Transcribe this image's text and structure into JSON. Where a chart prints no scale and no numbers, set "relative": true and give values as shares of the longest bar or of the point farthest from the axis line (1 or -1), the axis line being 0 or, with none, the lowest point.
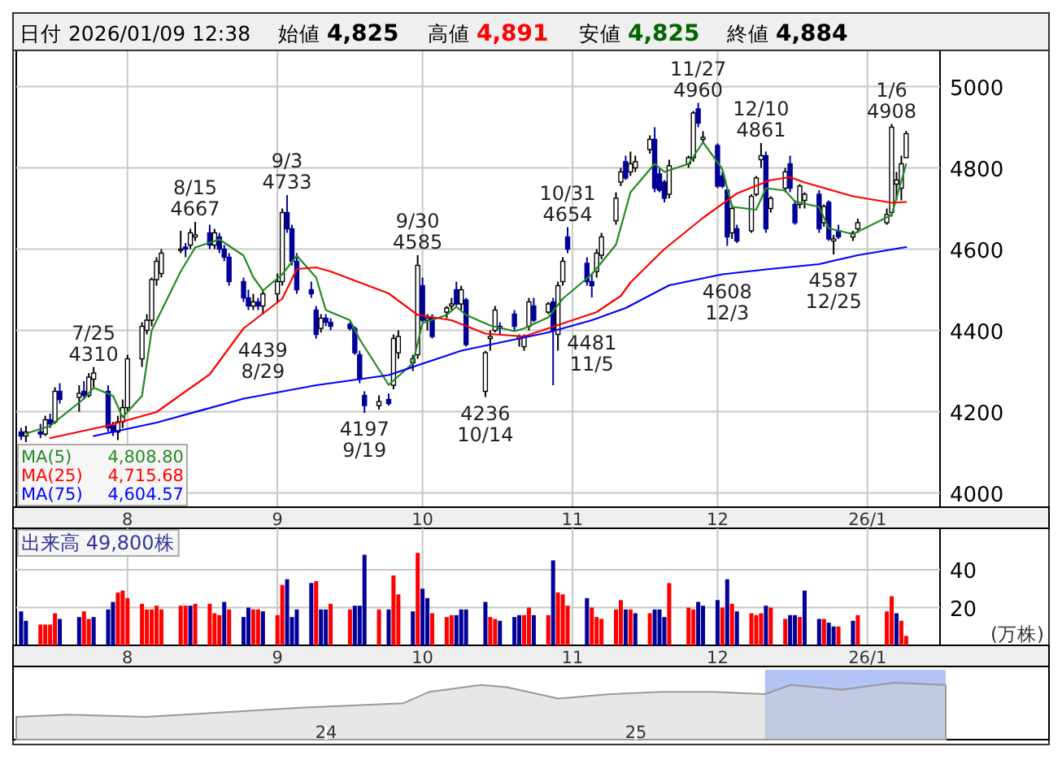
{
  "chart_data": [
    {
      "type": "candlestick",
      "x": [
        "2025-07-10",
        "2025-07-11",
        "2025-07-14",
        "2025-07-15",
        "2025-07-16",
        "2025-07-17",
        "2025-07-18",
        "2025-07-22",
        "2025-07-23",
        "2025-07-24",
        "2025-07-25",
        "2025-07-28",
        "2025-07-29",
        "2025-07-30",
        "2025-07-31",
        "2025-08-01",
        "2025-08-04",
        "2025-08-05",
        "2025-08-06",
        "2025-08-07",
        "2025-08-08",
        "2025-08-12",
        "2025-08-13",
        "2025-08-14",
        "2025-08-15",
        "2025-08-18",
        "2025-08-19",
        "2025-08-20",
        "2025-08-21",
        "2025-08-22",
        "2025-08-25",
        "2025-08-26",
        "2025-08-27",
        "2025-08-28",
        "2025-08-29",
        "2025-09-01",
        "2025-09-02",
        "2025-09-03",
        "2025-09-04",
        "2025-09-05",
        "2025-09-08",
        "2025-09-09",
        "2025-09-10",
        "2025-09-11",
        "2025-09-12",
        "2025-09-16",
        "2025-09-17",
        "2025-09-18",
        "2025-09-19",
        "2025-09-22",
        "2025-09-24",
        "2025-09-25",
        "2025-09-26",
        "2025-09-29",
        "2025-09-30",
        "2025-10-01",
        "2025-10-02",
        "2025-10-03",
        "2025-10-06",
        "2025-10-07",
        "2025-10-08",
        "2025-10-09",
        "2025-10-10",
        "2025-10-14",
        "2025-10-15",
        "2025-10-16",
        "2025-10-17",
        "2025-10-20",
        "2025-10-21",
        "2025-10-22",
        "2025-10-23",
        "2025-10-24",
        "2025-10-27",
        "2025-10-28",
        "2025-10-29",
        "2025-10-30",
        "2025-10-31",
        "2025-11-04",
        "2025-11-05",
        "2025-11-06",
        "2025-11-07",
        "2025-11-10",
        "2025-11-11",
        "2025-11-12",
        "2025-11-13",
        "2025-11-14",
        "2025-11-17",
        "2025-11-18",
        "2025-11-19",
        "2025-11-20",
        "2025-11-21",
        "2025-11-25",
        "2025-11-26",
        "2025-11-27",
        "2025-11-28",
        "2025-12-01",
        "2025-12-02",
        "2025-12-03",
        "2025-12-04",
        "2025-12-05",
        "2025-12-08",
        "2025-12-09",
        "2025-12-10",
        "2025-12-11",
        "2025-12-12",
        "2025-12-15",
        "2025-12-16",
        "2025-12-17",
        "2025-12-18",
        "2025-12-19",
        "2025-12-22",
        "2025-12-23",
        "2025-12-24",
        "2025-12-25",
        "2025-12-26",
        "2025-12-29",
        "2025-12-30",
        "2026-01-05",
        "2026-01-06",
        "2026-01-07",
        "2026-01-08",
        "2026-01-09"
      ],
      "ohlc": [
        [
          4150,
          4160,
          4130,
          4140
        ],
        [
          4140,
          4165,
          4125,
          4150
        ],
        [
          4150,
          4170,
          4135,
          4145
        ],
        [
          4145,
          4190,
          4140,
          4180
        ],
        [
          4180,
          4195,
          4160,
          4170
        ],
        [
          4175,
          4260,
          4170,
          4250
        ],
        [
          4250,
          4270,
          4220,
          4230
        ],
        [
          4235,
          4265,
          4200,
          4245
        ],
        [
          4250,
          4275,
          4230,
          4240
        ],
        [
          4240,
          4295,
          4235,
          4285
        ],
        [
          4280,
          4310,
          4260,
          4295
        ],
        [
          4250,
          4265,
          4150,
          4160
        ],
        [
          4165,
          4175,
          4140,
          4150
        ],
        [
          4150,
          4190,
          4130,
          4175
        ],
        [
          4175,
          4230,
          4160,
          4210
        ],
        [
          4210,
          4340,
          4200,
          4330
        ],
        [
          4330,
          4420,
          4310,
          4410
        ],
        [
          4400,
          4440,
          4390,
          4425
        ],
        [
          4425,
          4530,
          4410,
          4525
        ],
        [
          4525,
          4580,
          4510,
          4570
        ],
        [
          4540,
          4600,
          4530,
          4590
        ],
        [
          4600,
          4645,
          4590,
          4600
        ],
        [
          4605,
          4615,
          4580,
          4600
        ],
        [
          4610,
          4650,
          4600,
          4640
        ],
        [
          4630,
          4667,
          4620,
          4635
        ],
        [
          4640,
          4660,
          4600,
          4610
        ],
        [
          4610,
          4650,
          4600,
          4640
        ],
        [
          4630,
          4640,
          4590,
          4600
        ],
        [
          4600,
          4610,
          4570,
          4580
        ],
        [
          4580,
          4590,
          4510,
          4520
        ],
        [
          4520,
          4530,
          4470,
          4480
        ],
        [
          4480,
          4500,
          4450,
          4460
        ],
        [
          4460,
          4490,
          4450,
          4470
        ],
        [
          4470,
          4480,
          4450,
          4460
        ],
        [
          4460,
          4500,
          4439,
          4490
        ],
        [
          4490,
          4540,
          4470,
          4520
        ],
        [
          4520,
          4700,
          4510,
          4690
        ],
        [
          4690,
          4733,
          4640,
          4650
        ],
        [
          4650,
          4660,
          4560,
          4570
        ],
        [
          4570,
          4590,
          4490,
          4500
        ],
        [
          4500,
          4520,
          4480,
          4490
        ],
        [
          4450,
          4460,
          4380,
          4390
        ],
        [
          4405,
          4440,
          4395,
          4430
        ],
        [
          4430,
          4440,
          4410,
          4420
        ],
        [
          4420,
          4430,
          4400,
          4410
        ],
        [
          4415,
          4420,
          4400,
          4405
        ],
        [
          4405,
          4410,
          4340,
          4345
        ],
        [
          4340,
          4350,
          4270,
          4280
        ],
        [
          4240,
          4250,
          4197,
          4215
        ],
        [
          4215,
          4240,
          4205,
          4225
        ],
        [
          4230,
          4245,
          4215,
          4220
        ],
        [
          4265,
          4390,
          4255,
          4380
        ],
        [
          4345,
          4400,
          4330,
          4385
        ],
        [
          4320,
          4340,
          4300,
          4330
        ],
        [
          4340,
          4585,
          4330,
          4560
        ],
        [
          4510,
          4530,
          4420,
          4425
        ],
        [
          4425,
          4440,
          4400,
          4430
        ],
        [
          4430,
          4440,
          4380,
          4385
        ],
        [
          4445,
          4460,
          4430,
          4455
        ],
        [
          4460,
          4480,
          4450,
          4465
        ],
        [
          4500,
          4520,
          4460,
          4465
        ],
        [
          4465,
          4510,
          4450,
          4500
        ],
        [
          4475,
          4480,
          4360,
          4365
        ],
        [
          4250,
          4350,
          4236,
          4345
        ],
        [
          4380,
          4400,
          4350,
          4385
        ],
        [
          4400,
          4460,
          4395,
          4450
        ],
        [
          4410,
          4420,
          4390,
          4405
        ],
        [
          4440,
          4450,
          4400,
          4410
        ],
        [
          4380,
          4390,
          4360,
          4385
        ],
        [
          4360,
          4390,
          4350,
          4385
        ],
        [
          4410,
          4480,
          4400,
          4470
        ],
        [
          4460,
          4480,
          4420,
          4425
        ],
        [
          4445,
          4470,
          4440,
          4465
        ],
        [
          4470,
          4480,
          4265,
          4400
        ],
        [
          4390,
          4520,
          4350,
          4510
        ],
        [
          4520,
          4580,
          4510,
          4570
        ],
        [
          4630,
          4654,
          4590,
          4600
        ],
        [
          4565,
          4580,
          4510,
          4520
        ],
        [
          4520,
          4540,
          4481,
          4510
        ],
        [
          4545,
          4600,
          4530,
          4590
        ],
        [
          4585,
          4640,
          4575,
          4630
        ],
        [
          4670,
          4740,
          4660,
          4725
        ],
        [
          4765,
          4800,
          4755,
          4790
        ],
        [
          4815,
          4830,
          4770,
          4775
        ],
        [
          4790,
          4840,
          4780,
          4810
        ],
        [
          4800,
          4830,
          4790,
          4815
        ],
        [
          4845,
          4880,
          4835,
          4870
        ],
        [
          4870,
          4900,
          4740,
          4750
        ],
        [
          4785,
          4800,
          4740,
          4745
        ],
        [
          4765,
          4770,
          4715,
          4725
        ],
        [
          4735,
          4820,
          4725,
          4805
        ],
        [
          4810,
          4830,
          4800,
          4825
        ],
        [
          4825,
          4940,
          4815,
          4935
        ],
        [
          4945,
          4960,
          4900,
          4910
        ],
        [
          4870,
          4890,
          4860,
          4875
        ],
        [
          4855,
          4860,
          4750,
          4755
        ],
        [
          4780,
          4790,
          4750,
          4755
        ],
        [
          4745,
          4750,
          4608,
          4630
        ],
        [
          4640,
          4710,
          4625,
          4700
        ],
        [
          4650,
          4660,
          4615,
          4620
        ],
        [
          4645,
          4735,
          4640,
          4730
        ],
        [
          4735,
          4780,
          4730,
          4775
        ],
        [
          4820,
          4861,
          4800,
          4830
        ],
        [
          4830,
          4840,
          4640,
          4650
        ],
        [
          4700,
          4730,
          4690,
          4725
        ],
        [
          4750,
          4800,
          4740,
          4790
        ],
        [
          4810,
          4830,
          4740,
          4750
        ],
        [
          4710,
          4720,
          4660,
          4665
        ],
        [
          4710,
          4760,
          4700,
          4755
        ],
        [
          4720,
          4740,
          4700,
          4735
        ],
        [
          4735,
          4745,
          4640,
          4650
        ],
        [
          4665,
          4710,
          4655,
          4705
        ],
        [
          4715,
          4720,
          4620,
          4625
        ],
        [
          4620,
          4635,
          4587,
          4625
        ],
        [
          4645,
          4660,
          4625,
          4630
        ],
        [
          4630,
          4645,
          4620,
          4640
        ],
        [
          4650,
          4675,
          4640,
          4665
        ],
        [
          4665,
          4700,
          4660,
          4685
        ],
        [
          4690,
          4908,
          4680,
          4900
        ],
        [
          4760,
          4790,
          4720,
          4770
        ],
        [
          4750,
          4830,
          4720,
          4810
        ],
        [
          4825,
          4891,
          4825,
          4884
        ]
      ],
      "colors": [
        "#000099",
        "#ffffff",
        "#000099",
        "#ffffff",
        "#000099",
        "#ffffff",
        "#000099",
        "#ffffff",
        "#000099",
        "#ffffff",
        "#ffffff",
        "#000099",
        "#000099",
        "#ffffff",
        "#ffffff",
        "#ffffff",
        "#ffffff",
        "#ffffff",
        "#ffffff",
        "#ffffff",
        "#ffffff",
        "#ffffff",
        "#000099",
        "#ffffff",
        "#ffffff",
        "#000099",
        "#ffffff",
        "#000099",
        "#000099",
        "#000099",
        "#000099",
        "#000099",
        "#ffffff",
        "#000099",
        "#ffffff",
        "#ffffff",
        "#ffffff",
        "#000099",
        "#000099",
        "#000099",
        "#000099",
        "#000099",
        "#ffffff",
        "#000099",
        "#000099",
        "#000099",
        "#000099",
        "#000099",
        "#000099",
        "#ffffff",
        "#000099",
        "#ffffff",
        "#ffffff",
        "#ffffff",
        "#ffffff",
        "#000099",
        "#ffffff",
        "#000099",
        "#ffffff",
        "#ffffff",
        "#000099",
        "#ffffff",
        "#000099",
        "#ffffff",
        "#ffffff",
        "#ffffff",
        "#000099",
        "#000099",
        "#ffffff",
        "#ffffff",
        "#ffffff",
        "#000099",
        "#ffffff",
        "#000099",
        "#ffffff",
        "#ffffff",
        "#000099",
        "#000099",
        "#000099",
        "#ffffff",
        "#ffffff",
        "#ffffff",
        "#ffffff",
        "#000099",
        "#ffffff",
        "#ffffff",
        "#ffffff",
        "#000099",
        "#000099",
        "#000099",
        "#ffffff",
        "#ffffff",
        "#ffffff",
        "#000099",
        "#ffffff",
        "#000099",
        "#000099",
        "#000099",
        "#ffffff",
        "#000099",
        "#ffffff",
        "#ffffff",
        "#ffffff",
        "#000099",
        "#ffffff",
        "#ffffff",
        "#000099",
        "#000099",
        "#ffffff",
        "#ffffff",
        "#000099",
        "#ffffff",
        "#000099",
        "#ffffff",
        "#000099",
        "#ffffff",
        "#ffffff",
        "#ffffff",
        "#ffffff",
        "#ffffff",
        "#ffffff",
        "#ffffff"
      ],
      "series": [
        {
          "type": "line",
          "name": "MA(5) 4,808.80",
          "color": "#228b22",
          "x": [
            "2025-07-11",
            "2025-07-16",
            "2025-07-23",
            "2025-07-25",
            "2025-07-29",
            "2025-07-31",
            "2025-08-04",
            "2025-08-06",
            "2025-08-12",
            "2025-08-15",
            "2025-08-20",
            "2025-08-25",
            "2025-08-27",
            "2025-08-29",
            "2025-09-02",
            "2025-09-05",
            "2025-09-09",
            "2025-09-11",
            "2025-09-16",
            "2025-09-18",
            "2025-09-24",
            "2025-09-29",
            "2025-10-01",
            "2025-10-06",
            "2025-10-08",
            "2025-10-10",
            "2025-10-15",
            "2025-10-20",
            "2025-10-22",
            "2025-10-27",
            "2025-10-30",
            "2025-11-05",
            "2025-11-10",
            "2025-11-13",
            "2025-11-18",
            "2025-11-20",
            "2025-11-25",
            "2025-11-28",
            "2025-12-02",
            "2025-12-04",
            "2025-12-09",
            "2025-12-11",
            "2025-12-15",
            "2025-12-17",
            "2025-12-22",
            "2025-12-24",
            "2025-12-29",
            "2026-01-06",
            "2026-01-09"
          ],
          "values": [
            4146,
            4165,
            4232,
            4259,
            4239,
            4186,
            4239,
            4400,
            4545,
            4604,
            4624,
            4584,
            4531,
            4498,
            4538,
            4584,
            4530,
            4450,
            4425,
            4378,
            4266,
            4319,
            4418,
            4438,
            4458,
            4438,
            4412,
            4398,
            4405,
            4432,
            4478,
            4538,
            4611,
            4740,
            4810,
            4790,
            4810,
            4863,
            4797,
            4704,
            4697,
            4750,
            4744,
            4717,
            4704,
            4651,
            4637,
            4684,
            4809
          ]
        },
        {
          "type": "line",
          "name": "MA(25) 4,715.68",
          "color": "#ff0000",
          "x": [
            "2025-07-16",
            "2025-07-28",
            "2025-08-07",
            "2025-08-18",
            "2025-08-25",
            "2025-09-02",
            "2025-09-05",
            "2025-09-09",
            "2025-09-12",
            "2025-09-24",
            "2025-09-30",
            "2025-10-07",
            "2025-10-14",
            "2025-10-22",
            "2025-10-27",
            "2025-11-06",
            "2025-11-11",
            "2025-11-13",
            "2025-11-20",
            "2025-11-28",
            "2025-12-05",
            "2025-12-12",
            "2025-12-16",
            "2025-12-19",
            "2025-12-29",
            "2026-01-06",
            "2026-01-09"
          ],
          "values": [
            4135,
            4166,
            4199,
            4292,
            4405,
            4478,
            4551,
            4555,
            4545,
            4491,
            4438,
            4425,
            4392,
            4385,
            4405,
            4445,
            4485,
            4518,
            4600,
            4677,
            4737,
            4770,
            4777,
            4764,
            4730,
            4714,
            4716
          ]
        },
        {
          "type": "line",
          "name": "MA(75) 4,604.57",
          "color": "#0000ff",
          "x": [
            "2025-07-25",
            "2025-08-07",
            "2025-08-25",
            "2025-09-09",
            "2025-09-24",
            "2025-10-09",
            "2025-10-27",
            "2025-11-05",
            "2025-11-12",
            "2025-11-21",
            "2025-12-02",
            "2025-12-11",
            "2025-12-22",
            "2025-12-30",
            "2026-01-09"
          ],
          "values": [
            4140,
            4173,
            4232,
            4265,
            4290,
            4350,
            4395,
            4425,
            4455,
            4511,
            4538,
            4550,
            4563,
            4585,
            4605
          ]
        }
      ],
      "annotations": [
        "日付 2026/01/09 12:38",
        "始値 4,825",
        "高値 4,891",
        "安値 4,825",
        "終値 4,884",
        {
          "text": "7/25 4310",
          "x": "2025-07-25",
          "y": 4310
        },
        {
          "text": "8/15 4667",
          "x": "2025-08-15",
          "y": 4667
        },
        {
          "text": "4439 8/29",
          "x": "2025-08-29",
          "y": 4439
        },
        {
          "text": "9/3 4733",
          "x": "2025-09-03",
          "y": 4733
        },
        {
          "text": "4197 9/19",
          "x": "2025-09-19",
          "y": 4197
        },
        {
          "text": "9/30 4585",
          "x": "2025-09-30",
          "y": 4585
        },
        {
          "text": "4236 10/14",
          "x": "2025-10-14",
          "y": 4236
        },
        {
          "text": "10/31 4654",
          "x": "2025-10-31",
          "y": 4654
        },
        {
          "text": "4481 11/5",
          "x": "2025-11-05",
          "y": 4481
        },
        {
          "text": "11/27 4960",
          "x": "2025-11-27",
          "y": 4960
        },
        {
          "text": "4608 12/3",
          "x": "2025-12-03",
          "y": 4608
        },
        {
          "text": "12/10 4861",
          "x": "2025-12-10",
          "y": 4861
        },
        {
          "text": "4587 12/25",
          "x": "2025-12-25",
          "y": 4587
        },
        {
          "text": "1/6 4908",
          "x": "2026-01-06",
          "y": 4908
        }
      ],
      "ylim": [
        3965,
        5089
      ],
      "yticks": [
        4000,
        4200,
        4400,
        4600,
        4800,
        5000
      ],
      "xlim": [
        "2025-07-09",
        "2026-01-16"
      ],
      "xticks": [
        {
          "value": "2025-08-01",
          "label": "8"
        },
        {
          "value": "2025-09-01",
          "label": "9"
        },
        {
          "value": "2025-10-01",
          "label": "10"
        },
        {
          "value": "2025-11-01",
          "label": "11"
        },
        {
          "value": "2025-12-01",
          "label": "12"
        },
        {
          "value": "2026-01-01",
          "label": "26/1"
        }
      ],
      "grid": true
    },
    {
      "type": "bar",
      "title": "出来高 49,800株",
      "ylabel": "(万株)",
      "x": [
        "2025-07-10",
        "2025-07-11",
        "2025-07-14",
        "2025-07-15",
        "2025-07-16",
        "2025-07-17",
        "2025-07-18",
        "2025-07-22",
        "2025-07-23",
        "2025-07-24",
        "2025-07-25",
        "2025-07-28",
        "2025-07-29",
        "2025-07-30",
        "2025-07-31",
        "2025-08-01",
        "2025-08-04",
        "2025-08-05",
        "2025-08-06",
        "2025-08-07",
        "2025-08-08",
        "2025-08-12",
        "2025-08-13",
        "2025-08-14",
        "2025-08-15",
        "2025-08-18",
        "2025-08-19",
        "2025-08-20",
        "2025-08-21",
        "2025-08-22",
        "2025-08-25",
        "2025-08-26",
        "2025-08-27",
        "2025-08-28",
        "2025-08-29",
        "2025-09-01",
        "2025-09-02",
        "2025-09-03",
        "2025-09-04",
        "2025-09-05",
        "2025-09-08",
        "2025-09-09",
        "2025-09-10",
        "2025-09-11",
        "2025-09-12",
        "2025-09-16",
        "2025-09-17",
        "2025-09-18",
        "2025-09-19",
        "2025-09-22",
        "2025-09-24",
        "2025-09-25",
        "2025-09-26",
        "2025-09-29",
        "2025-09-30",
        "2025-10-01",
        "2025-10-02",
        "2025-10-03",
        "2025-10-06",
        "2025-10-07",
        "2025-10-08",
        "2025-10-09",
        "2025-10-10",
        "2025-10-14",
        "2025-10-15",
        "2025-10-16",
        "2025-10-17",
        "2025-10-20",
        "2025-10-21",
        "2025-10-22",
        "2025-10-23",
        "2025-10-24",
        "2025-10-27",
        "2025-10-28",
        "2025-10-29",
        "2025-10-30",
        "2025-10-31",
        "2025-11-04",
        "2025-11-05",
        "2025-11-06",
        "2025-11-07",
        "2025-11-10",
        "2025-11-11",
        "2025-11-12",
        "2025-11-13",
        "2025-11-14",
        "2025-11-17",
        "2025-11-18",
        "2025-11-19",
        "2025-11-20",
        "2025-11-21",
        "2025-11-25",
        "2025-11-26",
        "2025-11-27",
        "2025-11-28",
        "2025-12-01",
        "2025-12-02",
        "2025-12-03",
        "2025-12-04",
        "2025-12-05",
        "2025-12-08",
        "2025-12-09",
        "2025-12-10",
        "2025-12-11",
        "2025-12-12",
        "2025-12-15",
        "2025-12-16",
        "2025-12-17",
        "2025-12-18",
        "2025-12-19",
        "2025-12-22",
        "2025-12-23",
        "2025-12-24",
        "2025-12-25",
        "2025-12-26",
        "2025-12-29",
        "2025-12-30",
        "2026-01-05",
        "2026-01-06",
        "2026-01-07",
        "2026-01-08",
        "2026-01-09"
      ],
      "values": [
        18,
        13,
        11,
        11,
        11,
        17,
        14,
        15,
        18,
        14,
        15,
        19,
        23,
        28,
        29,
        25,
        22,
        19,
        19,
        21,
        19,
        21,
        21,
        21,
        22,
        22,
        17,
        16,
        23,
        19,
        15,
        20,
        19,
        19,
        18,
        16,
        32,
        35,
        15,
        19,
        33,
        34,
        19,
        19,
        22,
        19,
        21,
        21,
        48,
        19,
        19,
        37,
        27,
        18,
        49,
        30,
        25,
        17,
        15,
        16,
        16,
        19,
        19,
        23,
        15,
        14,
        13,
        15,
        16,
        16,
        20,
        16,
        16,
        45,
        28,
        27,
        21,
        25,
        20,
        15,
        14,
        19,
        24,
        19,
        19,
        17,
        17,
        19,
        19,
        15,
        33,
        20,
        19,
        23,
        21,
        24,
        20,
        35,
        22,
        18,
        17,
        16,
        17,
        21,
        20,
        14,
        16,
        16,
        15,
        29,
        14,
        14,
        12,
        10,
        10,
        13,
        16,
        18,
        26,
        17,
        13,
        5
      ],
      "colors": [
        "#000099",
        "#000099",
        "#ff0000",
        "#ff0000",
        "#ff0000",
        "#ff0000",
        "#000099",
        "#000099",
        "#ff0000",
        "#ff0000",
        "#000099",
        "#000099",
        "#000099",
        "#ff0000",
        "#ff0000",
        "#ff0000",
        "#ff0000",
        "#ff0000",
        "#ff0000",
        "#ff0000",
        "#ff0000",
        "#ff0000",
        "#ff0000",
        "#000099",
        "#ff0000",
        "#ff0000",
        "#ff0000",
        "#ff0000",
        "#000099",
        "#ff0000",
        "#000099",
        "#000099",
        "#ff0000",
        "#ff0000",
        "#000099",
        "#ff0000",
        "#ff0000",
        "#000099",
        "#000099",
        "#000099",
        "#000099",
        "#ff0000",
        "#000099",
        "#000099",
        "#ff0000",
        "#ff0000",
        "#000099",
        "#000099",
        "#000099",
        "#ff0000",
        "#000099",
        "#ff0000",
        "#ff0000",
        "#000099",
        "#ff0000",
        "#000099",
        "#000099",
        "#ff0000",
        "#ff0000",
        "#ff0000",
        "#000099",
        "#000099",
        "#000099",
        "#000099",
        "#ff0000",
        "#ff0000",
        "#000099",
        "#000099",
        "#000099",
        "#ff0000",
        "#ff0000",
        "#000099",
        "#ff0000",
        "#000099",
        "#ff0000",
        "#ff0000",
        "#ff0000",
        "#000099",
        "#ff0000",
        "#ff0000",
        "#ff0000",
        "#ff0000",
        "#ff0000",
        "#000099",
        "#ff0000",
        "#000099",
        "#ff0000",
        "#000099",
        "#000099",
        "#000099",
        "#ff0000",
        "#ff0000",
        "#ff0000",
        "#000099",
        "#000099",
        "#000099",
        "#ff0000",
        "#000099",
        "#ff0000",
        "#000099",
        "#ff0000",
        "#ff0000",
        "#ff0000",
        "#000099",
        "#ff0000",
        "#ff0000",
        "#000099",
        "#000099",
        "#ff0000",
        "#000099",
        "#000099",
        "#ff0000",
        "#000099",
        "#000099",
        "#ff0000",
        "#000099",
        "#ff0000",
        "#ff0000",
        "#ff0000",
        "#000099",
        "#ff0000",
        "#ff0000"
      ],
      "ylim": [
        0,
        62
      ],
      "yticks": [
        20,
        40
      ],
      "xlim": [
        "2025-07-09",
        "2026-01-16"
      ],
      "xticks": [
        {
          "value": "2025-08-01",
          "label": "8"
        },
        {
          "value": "2025-09-01",
          "label": "9"
        },
        {
          "value": "2025-10-01",
          "label": "10"
        },
        {
          "value": "2025-11-01",
          "label": "11"
        },
        {
          "value": "2025-12-01",
          "label": "12"
        },
        {
          "value": "2026-01-01",
          "label": "26/1"
        }
      ],
      "grid": true
    },
    {
      "type": "area",
      "relative": true,
      "color": "#999999",
      "x": [
        "2023-01",
        "2023-03",
        "2023-06",
        "2023-09",
        "2023-12",
        "2024-02",
        "2024-04",
        "2024-05",
        "2024-07",
        "2024-08",
        "2024-10",
        "2024-12",
        "2025-02",
        "2025-04",
        "2025-06",
        "2025-07",
        "2025-09",
        "2025-11",
        "2026-01"
      ],
      "values": [
        0.4,
        0.44,
        0.4,
        0.48,
        0.56,
        0.6,
        0.64,
        0.84,
        0.96,
        0.92,
        0.72,
        0.8,
        0.84,
        0.84,
        0.8,
        0.96,
        0.88,
        1,
        0.96
      ],
      "xlim": [
        "2023-01",
        "2026-05"
      ],
      "xticks": [
        {
          "value": "2024-01",
          "label": "24"
        },
        {
          "value": "2025-01",
          "label": "25"
        }
      ],
      "bands": [
        {
          "axis": "x",
          "from": "2025-06",
          "to": "2026-01",
          "color": "#b4c3f5"
        }
      ]
    }
  ]
}
